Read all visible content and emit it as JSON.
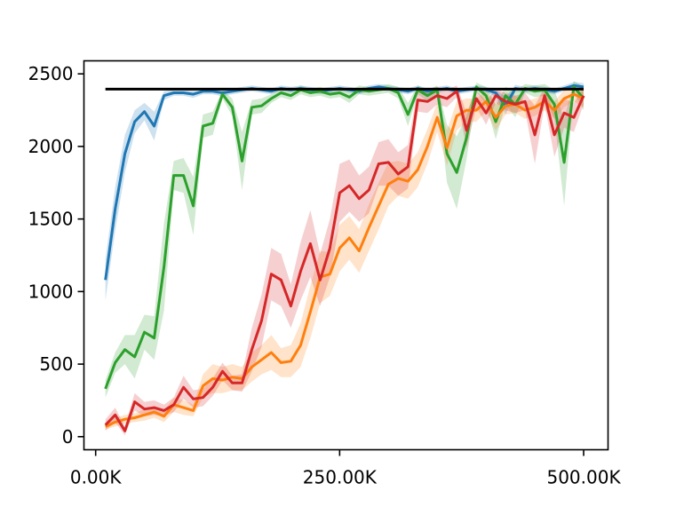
{
  "chart_data": {
    "type": "line",
    "title": "",
    "xlabel": "",
    "ylabel": "",
    "xlim": [
      -12000,
      525000
    ],
    "ylim": [
      -90,
      2590
    ],
    "x_ticks": [
      0,
      250000,
      500000
    ],
    "x_tick_labels": [
      "0.00K",
      "250.00K",
      "500.00K"
    ],
    "y_ticks": [
      0,
      500,
      1000,
      1500,
      2000,
      2500
    ],
    "y_tick_labels": [
      "0",
      "500",
      "1000",
      "1500",
      "2000",
      "2500"
    ],
    "grid": false,
    "legend": "none",
    "reference_line": {
      "y": 2395,
      "x_range": [
        10000,
        500000
      ],
      "color": "#000000"
    },
    "x": [
      10000,
      20000,
      30000,
      40000,
      50000,
      60000,
      70000,
      80000,
      90000,
      100000,
      110000,
      120000,
      130000,
      140000,
      150000,
      160000,
      170000,
      180000,
      190000,
      200000,
      210000,
      220000,
      230000,
      240000,
      250000,
      260000,
      270000,
      280000,
      290000,
      300000,
      310000,
      320000,
      330000,
      340000,
      350000,
      360000,
      370000,
      380000,
      390000,
      400000,
      410000,
      420000,
      430000,
      440000,
      450000,
      460000,
      470000,
      480000,
      490000,
      500000
    ],
    "series": [
      {
        "color": "#1f77b4",
        "values": [
          1080,
          1570,
          1950,
          2170,
          2240,
          2140,
          2350,
          2370,
          2370,
          2360,
          2380,
          2380,
          2370,
          2380,
          2390,
          2400,
          2390,
          2380,
          2400,
          2390,
          2400,
          2390,
          2380,
          2390,
          2400,
          2390,
          2380,
          2400,
          2410,
          2400,
          2390,
          2380,
          2400,
          2380,
          2390,
          2400,
          2380,
          2390,
          2400,
          2390,
          2370,
          2280,
          2400,
          2390,
          2400,
          2390,
          2380,
          2400,
          2420,
          2410
        ],
        "band": [
          140,
          150,
          130,
          80,
          60,
          100,
          30,
          20,
          20,
          25,
          20,
          20,
          25,
          20,
          20,
          20,
          20,
          20,
          20,
          20,
          20,
          20,
          20,
          20,
          20,
          20,
          20,
          20,
          20,
          20,
          20,
          20,
          20,
          20,
          20,
          20,
          20,
          20,
          20,
          20,
          25,
          60,
          25,
          20,
          20,
          20,
          20,
          20,
          25,
          25
        ]
      },
      {
        "color": "#2ca02c",
        "values": [
          330,
          510,
          600,
          550,
          720,
          680,
          1170,
          1800,
          1800,
          1590,
          2140,
          2160,
          2360,
          2270,
          1900,
          2270,
          2280,
          2330,
          2370,
          2350,
          2390,
          2370,
          2380,
          2360,
          2370,
          2340,
          2390,
          2380,
          2390,
          2400,
          2370,
          2220,
          2390,
          2350,
          2390,
          1950,
          1820,
          2060,
          2410,
          2350,
          2170,
          2350,
          2290,
          2400,
          2380,
          2390,
          2290,
          1890,
          2410,
          2330
        ],
        "band": [
          60,
          70,
          100,
          150,
          120,
          150,
          300,
          100,
          120,
          200,
          80,
          80,
          30,
          60,
          200,
          50,
          50,
          30,
          30,
          30,
          30,
          30,
          30,
          30,
          30,
          40,
          30,
          30,
          30,
          30,
          40,
          80,
          30,
          40,
          30,
          200,
          250,
          150,
          30,
          60,
          120,
          60,
          90,
          30,
          40,
          40,
          100,
          300,
          40,
          80
        ]
      },
      {
        "color": "#ff7f0e",
        "values": [
          70,
          100,
          120,
          130,
          150,
          170,
          140,
          220,
          200,
          180,
          350,
          400,
          390,
          410,
          400,
          480,
          530,
          580,
          510,
          520,
          630,
          860,
          1100,
          1120,
          1300,
          1370,
          1280,
          1440,
          1590,
          1740,
          1780,
          1760,
          1840,
          2000,
          2200,
          1990,
          2210,
          2250,
          2250,
          2310,
          2200,
          2280,
          2290,
          2250,
          2270,
          2310,
          2250,
          2330,
          2360,
          2330
        ],
        "band": [
          20,
          30,
          30,
          30,
          40,
          40,
          40,
          50,
          50,
          40,
          80,
          100,
          90,
          90,
          80,
          100,
          100,
          120,
          100,
          110,
          150,
          180,
          180,
          150,
          160,
          150,
          150,
          160,
          160,
          150,
          120,
          120,
          120,
          120,
          100,
          120,
          100,
          80,
          80,
          70,
          90,
          60,
          60,
          60,
          60,
          60,
          60,
          60,
          50,
          60
        ]
      },
      {
        "color": "#d62728",
        "values": [
          80,
          150,
          40,
          240,
          190,
          200,
          180,
          220,
          340,
          260,
          270,
          340,
          450,
          370,
          370,
          600,
          800,
          1120,
          1080,
          900,
          1140,
          1330,
          1080,
          1300,
          1680,
          1730,
          1640,
          1700,
          1880,
          1890,
          1810,
          1860,
          2320,
          2310,
          2350,
          2330,
          2380,
          2110,
          2330,
          2230,
          2350,
          2310,
          2290,
          2310,
          2080,
          2350,
          2080,
          2230,
          2200,
          2350
        ],
        "band": [
          40,
          50,
          30,
          60,
          50,
          50,
          40,
          50,
          80,
          60,
          60,
          60,
          60,
          50,
          60,
          150,
          180,
          180,
          180,
          150,
          200,
          230,
          180,
          200,
          200,
          180,
          160,
          160,
          150,
          160,
          150,
          150,
          80,
          80,
          60,
          60,
          40,
          120,
          60,
          80,
          50,
          60,
          60,
          60,
          200,
          60,
          150,
          100,
          100,
          60
        ]
      }
    ]
  }
}
